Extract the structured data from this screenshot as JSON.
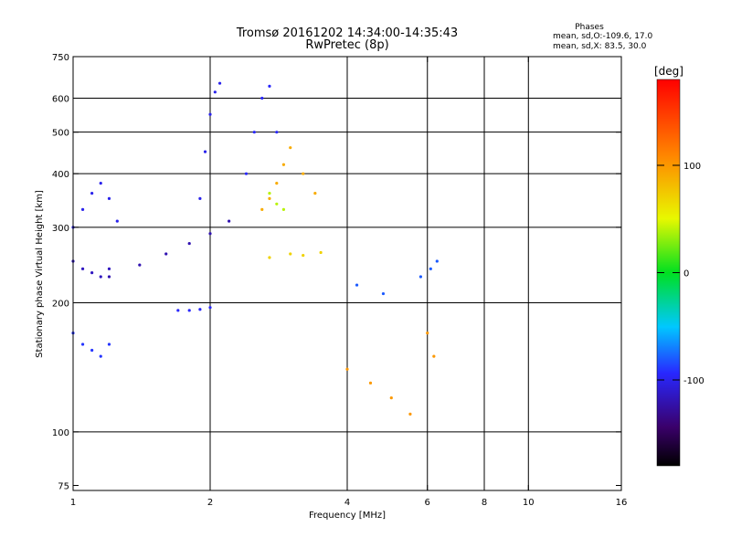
{
  "chart_data": {
    "type": "scatter",
    "title": "Tromsø 20161202 14:34:00-14:35:43",
    "subtitle": "RwPretec (8p)",
    "stats": {
      "heading": "Phases",
      "line1": "mean, sd,O:-109.6, 17.0",
      "line2": "mean, sd,X:  83.5, 30.0"
    },
    "xlabel": "Frequency [MHz]",
    "ylabel": "Stationary phase Virtual Height [km]",
    "x_scale": "log",
    "y_scale": "log",
    "xlim": [
      1,
      16
    ],
    "ylim": [
      73,
      750
    ],
    "x_ticks": [
      1,
      2,
      4,
      6,
      8,
      10,
      16
    ],
    "x_tick_labels": [
      "1",
      "2",
      "4",
      "6",
      "8",
      "10",
      "16"
    ],
    "x_grid_lines": [
      2,
      4,
      6,
      8,
      10
    ],
    "y_ticks": [
      75,
      100,
      200,
      300,
      400,
      500,
      600,
      750
    ],
    "y_tick_labels": [
      "75",
      "100",
      "200",
      "300",
      "400",
      "500",
      "600",
      "750"
    ],
    "y_grid_lines": [
      100,
      200,
      300,
      400,
      500,
      600
    ],
    "grid": true,
    "colorbar": {
      "label": "[deg]",
      "range": [
        -180,
        180
      ],
      "ticks": [
        -100,
        0,
        100
      ],
      "tick_labels": [
        "-100",
        "0",
        "100"
      ],
      "colormap": "rainbow"
    },
    "series": [
      {
        "x": [
          1.0,
          1.05,
          1.1,
          1.15,
          1.2,
          1.25
        ],
        "y": [
          300,
          330,
          360,
          380,
          350,
          310
        ],
        "phase": -100
      },
      {
        "x": [
          1.0,
          1.05,
          1.1,
          1.15,
          1.2
        ],
        "y": [
          250,
          240,
          235,
          230,
          240
        ],
        "phase": -115
      },
      {
        "x": [
          1.2,
          1.4,
          1.6,
          1.8,
          2.0,
          2.2
        ],
        "y": [
          230,
          245,
          260,
          275,
          290,
          310
        ],
        "phase": -120
      },
      {
        "x": [
          1.0,
          1.05,
          1.1,
          1.15,
          1.2
        ],
        "y": [
          170,
          160,
          155,
          150,
          160
        ],
        "phase": -90
      },
      {
        "x": [
          1.7,
          1.8,
          1.9,
          2.0
        ],
        "y": [
          192,
          192,
          193,
          195
        ],
        "phase": -95
      },
      {
        "x": [
          1.9,
          1.95,
          2.0,
          2.05,
          2.1
        ],
        "y": [
          350,
          450,
          550,
          620,
          650
        ],
        "phase": -100
      },
      {
        "x": [
          2.4,
          2.5,
          2.6,
          2.7,
          2.8
        ],
        "y": [
          400,
          500,
          600,
          640,
          500
        ],
        "phase": -95
      },
      {
        "x": [
          2.6,
          2.7,
          2.8,
          2.9,
          3.0,
          3.2,
          3.4
        ],
        "y": [
          330,
          350,
          380,
          420,
          460,
          400,
          360
        ],
        "phase": 90
      },
      {
        "x": [
          2.7,
          3.0,
          3.2,
          3.5
        ],
        "y": [
          255,
          260,
          258,
          262
        ],
        "phase": 70
      },
      {
        "x": [
          2.7,
          2.8,
          2.9
        ],
        "y": [
          360,
          340,
          330
        ],
        "phase": 40
      },
      {
        "x": [
          4.0,
          4.5,
          5.0,
          5.5,
          6.0,
          6.2
        ],
        "y": [
          140,
          130,
          120,
          110,
          170,
          150
        ],
        "phase": 100
      },
      {
        "x": [
          4.2,
          4.8,
          5.8,
          6.1,
          6.3
        ],
        "y": [
          220,
          210,
          230,
          240,
          250
        ],
        "phase": -80
      }
    ]
  }
}
